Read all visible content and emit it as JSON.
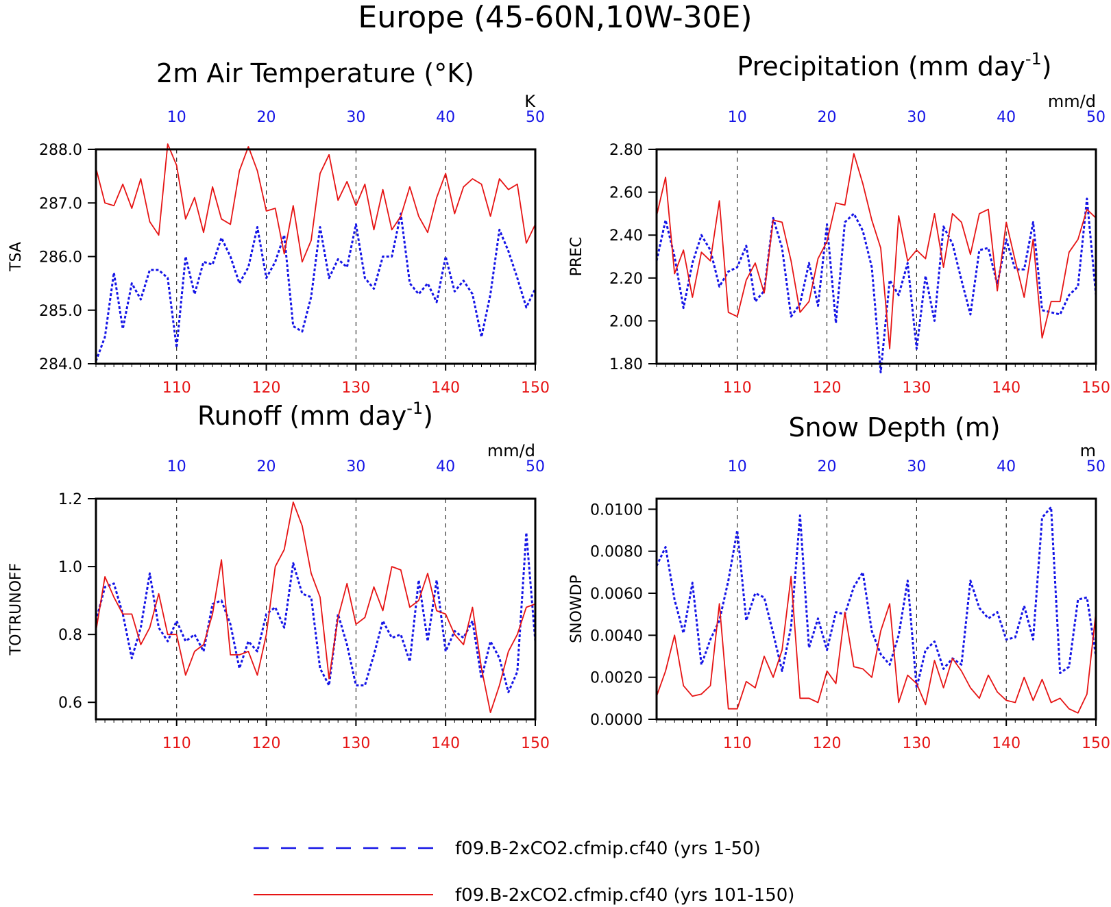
{
  "figure_title": "Europe (45-60N,10W-30E)",
  "colors": {
    "blue": "#1414e6",
    "red": "#e61414",
    "frame": "#000000",
    "grid": "#000000"
  },
  "legend": [
    {
      "label": "f09.B-2xCO2.cfmip.cf40 (yrs 1-50)",
      "color": "#1414e6",
      "style": "dashed"
    },
    {
      "label": "f09.B-2xCO2.cfmip.cf40 (yrs 101-150)",
      "color": "#e61414",
      "style": "solid"
    }
  ],
  "chart_data": [
    {
      "type": "line",
      "title": "2m Air Temperature (°K)",
      "ylabel": "TSA",
      "unit_label": "K",
      "ylim": [
        284.0,
        288.0
      ],
      "yticks": [
        "284.0",
        "285.0",
        "286.0",
        "287.0",
        "288.0"
      ],
      "x_bottom_ticks": [
        "110",
        "120",
        "130",
        "140",
        "150"
      ],
      "x_top_ticks": [
        "10",
        "20",
        "30",
        "40",
        "50"
      ],
      "x_range_bottom": [
        101,
        150
      ],
      "x_range_top": [
        1,
        50
      ],
      "series": [
        {
          "color": "blue",
          "style": "dashed",
          "axis": "top",
          "values": [
            284.05,
            284.5,
            285.7,
            284.65,
            285.5,
            285.2,
            285.75,
            285.75,
            285.6,
            284.3,
            286.0,
            285.3,
            285.9,
            285.85,
            286.35,
            286.0,
            285.5,
            285.8,
            286.55,
            285.6,
            285.9,
            286.4,
            284.7,
            284.6,
            285.25,
            286.55,
            285.6,
            285.95,
            285.8,
            286.6,
            285.6,
            285.4,
            286.0,
            286.0,
            286.8,
            285.5,
            285.3,
            285.5,
            285.15,
            286.0,
            285.35,
            285.55,
            285.3,
            284.5,
            285.3,
            286.5,
            286.1,
            285.6,
            285.05,
            285.4
          ]
        },
        {
          "color": "red",
          "style": "solid",
          "axis": "bottom",
          "values": [
            287.65,
            287.0,
            286.95,
            287.35,
            286.9,
            287.45,
            286.65,
            286.4,
            288.1,
            287.7,
            286.7,
            287.1,
            286.45,
            287.3,
            286.7,
            286.6,
            287.6,
            288.05,
            287.6,
            286.85,
            286.9,
            286.05,
            286.95,
            285.9,
            286.3,
            287.55,
            287.9,
            287.05,
            287.4,
            286.95,
            287.35,
            286.5,
            287.25,
            286.5,
            286.75,
            287.3,
            286.75,
            286.45,
            287.1,
            287.55,
            286.8,
            287.3,
            287.45,
            287.35,
            286.75,
            287.45,
            287.25,
            287.35,
            286.25,
            286.6
          ]
        }
      ]
    },
    {
      "type": "line",
      "title": "Precipitation (mm day",
      "title_sup": "-1",
      "title_end": ")",
      "ylabel": "PREC",
      "unit_label": "mm/d",
      "ylim": [
        1.8,
        2.8
      ],
      "yticks": [
        "1.80",
        "2.00",
        "2.20",
        "2.40",
        "2.60",
        "2.80"
      ],
      "x_bottom_ticks": [
        "110",
        "120",
        "130",
        "140",
        "150"
      ],
      "x_top_ticks": [
        "10",
        "20",
        "30",
        "40",
        "50"
      ],
      "x_range_bottom": [
        101,
        150
      ],
      "x_range_top": [
        1,
        50
      ],
      "series": [
        {
          "color": "blue",
          "style": "dashed",
          "axis": "top",
          "values": [
            2.28,
            2.47,
            2.3,
            2.06,
            2.27,
            2.4,
            2.33,
            2.16,
            2.23,
            2.25,
            2.35,
            2.09,
            2.14,
            2.48,
            2.34,
            2.02,
            2.08,
            2.27,
            2.07,
            2.45,
            1.99,
            2.46,
            2.5,
            2.42,
            2.25,
            1.76,
            2.19,
            2.12,
            2.27,
            1.87,
            2.21,
            2.0,
            2.44,
            2.36,
            2.19,
            2.03,
            2.33,
            2.34,
            2.17,
            2.38,
            2.24,
            2.24,
            2.46,
            2.05,
            2.04,
            2.03,
            2.12,
            2.16,
            2.57,
            2.12
          ]
        },
        {
          "color": "red",
          "style": "solid",
          "axis": "bottom",
          "values": [
            2.49,
            2.67,
            2.22,
            2.33,
            2.11,
            2.32,
            2.28,
            2.56,
            2.04,
            2.02,
            2.19,
            2.27,
            2.13,
            2.47,
            2.46,
            2.28,
            2.04,
            2.09,
            2.29,
            2.37,
            2.55,
            2.54,
            2.78,
            2.64,
            2.47,
            2.34,
            1.87,
            2.49,
            2.28,
            2.33,
            2.29,
            2.5,
            2.25,
            2.5,
            2.46,
            2.31,
            2.5,
            2.52,
            2.14,
            2.46,
            2.28,
            2.11,
            2.38,
            1.92,
            2.09,
            2.09,
            2.32,
            2.38,
            2.52,
            2.48
          ]
        }
      ]
    },
    {
      "type": "line",
      "title": "Runoff (mm day",
      "title_sup": "-1",
      "title_end": ")",
      "ylabel": "TOTRUNOFF",
      "unit_label": "mm/d",
      "ylim": [
        0.55,
        1.2
      ],
      "yticks": [
        "0.6",
        "0.8",
        "1.0",
        "1.2"
      ],
      "ytick_values": [
        0.6,
        0.8,
        1.0,
        1.2
      ],
      "x_bottom_ticks": [
        "110",
        "120",
        "130",
        "140",
        "150"
      ],
      "x_top_ticks": [
        "10",
        "20",
        "30",
        "40",
        "50"
      ],
      "x_range_bottom": [
        101,
        150
      ],
      "x_range_top": [
        1,
        50
      ],
      "series": [
        {
          "color": "blue",
          "style": "dashed",
          "axis": "top",
          "values": [
            0.84,
            0.94,
            0.95,
            0.86,
            0.73,
            0.82,
            0.98,
            0.82,
            0.78,
            0.84,
            0.78,
            0.8,
            0.75,
            0.89,
            0.9,
            0.83,
            0.7,
            0.78,
            0.75,
            0.86,
            0.88,
            0.82,
            1.01,
            0.92,
            0.91,
            0.7,
            0.65,
            0.86,
            0.77,
            0.65,
            0.65,
            0.74,
            0.84,
            0.79,
            0.8,
            0.72,
            0.96,
            0.78,
            0.96,
            0.75,
            0.81,
            0.79,
            0.84,
            0.67,
            0.78,
            0.73,
            0.63,
            0.69,
            1.1,
            0.78
          ]
        },
        {
          "color": "red",
          "style": "solid",
          "axis": "bottom",
          "values": [
            0.81,
            0.97,
            0.91,
            0.86,
            0.86,
            0.77,
            0.82,
            0.92,
            0.8,
            0.8,
            0.68,
            0.75,
            0.77,
            0.86,
            1.02,
            0.74,
            0.74,
            0.75,
            0.68,
            0.8,
            1.0,
            1.05,
            1.19,
            1.12,
            0.98,
            0.91,
            0.67,
            0.85,
            0.95,
            0.83,
            0.85,
            0.94,
            0.87,
            1.0,
            0.99,
            0.88,
            0.9,
            0.98,
            0.87,
            0.86,
            0.8,
            0.77,
            0.88,
            0.7,
            0.57,
            0.65,
            0.75,
            0.8,
            0.88,
            0.89
          ]
        }
      ]
    },
    {
      "type": "line",
      "title": "Snow Depth (m)",
      "ylabel": "SNOWDP",
      "unit_label": "m",
      "ylim": [
        0.0,
        0.0105
      ],
      "yticks": [
        "0.0000",
        "0.0020",
        "0.0040",
        "0.0060",
        "0.0080",
        "0.0100"
      ],
      "ytick_values": [
        0.0,
        0.002,
        0.004,
        0.006,
        0.008,
        0.01
      ],
      "x_bottom_ticks": [
        "110",
        "120",
        "130",
        "140",
        "150"
      ],
      "x_top_ticks": [
        "10",
        "20",
        "30",
        "40",
        "50"
      ],
      "x_range_bottom": [
        101,
        150
      ],
      "x_range_top": [
        1,
        50
      ],
      "series": [
        {
          "color": "blue",
          "style": "dashed",
          "axis": "top",
          "values": [
            0.0073,
            0.0082,
            0.0057,
            0.0041,
            0.0065,
            0.0026,
            0.0038,
            0.0047,
            0.0066,
            0.009,
            0.0047,
            0.006,
            0.0058,
            0.0041,
            0.0023,
            0.0044,
            0.0097,
            0.0034,
            0.0048,
            0.0033,
            0.0051,
            0.005,
            0.0063,
            0.007,
            0.0042,
            0.0031,
            0.0026,
            0.004,
            0.0066,
            0.0015,
            0.0033,
            0.0037,
            0.0024,
            0.0029,
            0.0026,
            0.0066,
            0.0053,
            0.0048,
            0.0051,
            0.0038,
            0.0039,
            0.0054,
            0.0038,
            0.0096,
            0.0101,
            0.0022,
            0.0025,
            0.0057,
            0.0058,
            0.003
          ]
        },
        {
          "color": "red",
          "style": "solid",
          "axis": "bottom",
          "values": [
            0.0011,
            0.0023,
            0.004,
            0.0016,
            0.0011,
            0.0012,
            0.0016,
            0.0055,
            0.0005,
            0.0005,
            0.0018,
            0.0015,
            0.003,
            0.002,
            0.0033,
            0.0068,
            0.001,
            0.001,
            0.0008,
            0.0023,
            0.0017,
            0.0051,
            0.0025,
            0.0024,
            0.002,
            0.0042,
            0.0055,
            0.0008,
            0.0021,
            0.0017,
            0.0007,
            0.0028,
            0.0015,
            0.0029,
            0.0023,
            0.0015,
            0.001,
            0.0021,
            0.0013,
            0.0009,
            0.0008,
            0.002,
            0.0009,
            0.0019,
            0.0008,
            0.001,
            0.0005,
            0.0003,
            0.0012,
            0.0051
          ]
        }
      ]
    }
  ]
}
